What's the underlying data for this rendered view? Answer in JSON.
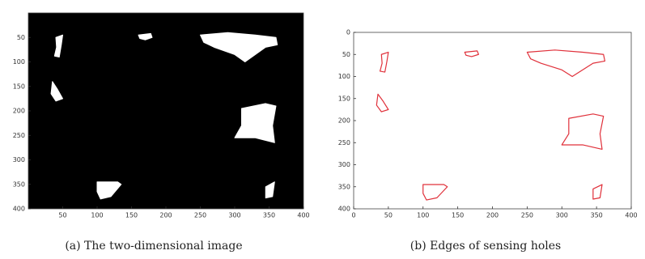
{
  "chart_data": [
    {
      "type": "image",
      "caption": "(a) The two-dimensional image",
      "xlim": [
        0,
        400
      ],
      "ylim": [
        0,
        400
      ],
      "xticks": [
        50,
        100,
        150,
        200,
        250,
        300,
        350,
        400
      ],
      "yticks": [
        50,
        100,
        150,
        200,
        250,
        300,
        350,
        400
      ]
    },
    {
      "type": "contour",
      "caption": "(b) Edges of sensing holes",
      "xlim": [
        0,
        400
      ],
      "ylim": [
        0,
        400
      ],
      "xticks": [
        0,
        50,
        100,
        150,
        200,
        250,
        300,
        350,
        400
      ],
      "yticks": [
        0,
        50,
        100,
        150,
        200,
        250,
        300,
        350,
        400
      ]
    }
  ]
}
